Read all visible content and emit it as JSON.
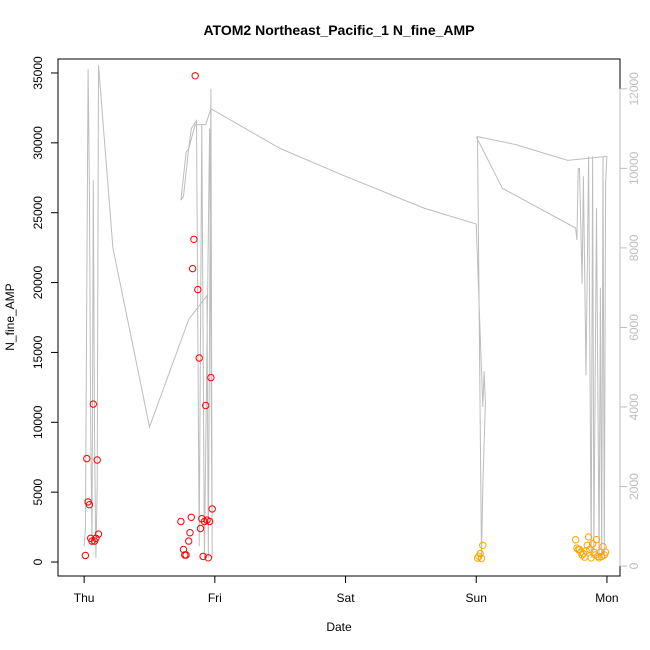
{
  "chart_data": {
    "type": "scatter",
    "title": "ATOM2 Northeast_Pacific_1 N_fine_AMP",
    "xlabel": "Date",
    "ylabel": "N_fine_AMP",
    "x_unit": "days since Thu 00:00",
    "x_ticks": [
      {
        "value": 0,
        "label": "Thu"
      },
      {
        "value": 1,
        "label": "Fri"
      },
      {
        "value": 2,
        "label": "Sat"
      },
      {
        "value": 3,
        "label": "Sun"
      },
      {
        "value": 4,
        "label": "Mon"
      }
    ],
    "xlim": [
      -0.2,
      4.1
    ],
    "ylim": [
      -1000,
      36000
    ],
    "y_ticks": [
      0,
      5000,
      10000,
      15000,
      20000,
      25000,
      30000,
      35000
    ],
    "y2lim": [
      -250,
      12750
    ],
    "y2_ticks": [
      0,
      2000,
      4000,
      6000,
      8000,
      10000,
      12000
    ],
    "y2_color": "#bdbdbd",
    "grid": false,
    "legend": "none",
    "series": [
      {
        "kind": "points",
        "color": "#ff0000",
        "points": [
          [
            0.01,
            470
          ],
          [
            0.02,
            7400
          ],
          [
            0.03,
            4300
          ],
          [
            0.04,
            4100
          ],
          [
            0.05,
            1700
          ],
          [
            0.06,
            1500
          ],
          [
            0.07,
            11300
          ],
          [
            0.08,
            1500
          ],
          [
            0.09,
            1700
          ],
          [
            0.1,
            7300
          ],
          [
            0.11,
            2000
          ],
          [
            0.74,
            2900
          ],
          [
            0.76,
            900
          ],
          [
            0.77,
            500
          ],
          [
            0.78,
            500
          ],
          [
            0.8,
            1500
          ],
          [
            0.81,
            2100
          ],
          [
            0.82,
            3200
          ],
          [
            0.83,
            21000
          ],
          [
            0.84,
            23100
          ],
          [
            0.85,
            34800
          ],
          [
            0.87,
            19500
          ],
          [
            0.88,
            14600
          ],
          [
            0.89,
            2400
          ],
          [
            0.9,
            3100
          ],
          [
            0.91,
            400
          ],
          [
            0.92,
            2900
          ],
          [
            0.93,
            11200
          ],
          [
            0.94,
            3000
          ],
          [
            0.95,
            300
          ],
          [
            0.96,
            2900
          ],
          [
            0.97,
            13200
          ],
          [
            0.98,
            3800
          ]
        ]
      },
      {
        "kind": "points",
        "color": "#ffa500",
        "points": [
          [
            3.01,
            280
          ],
          [
            3.02,
            420
          ],
          [
            3.03,
            600
          ],
          [
            3.04,
            250
          ],
          [
            3.05,
            1200
          ],
          [
            3.76,
            1600
          ],
          [
            3.77,
            1000
          ],
          [
            3.78,
            900
          ],
          [
            3.79,
            900
          ],
          [
            3.8,
            700
          ],
          [
            3.81,
            500
          ],
          [
            3.82,
            600
          ],
          [
            3.83,
            350
          ],
          [
            3.84,
            800
          ],
          [
            3.85,
            1200
          ],
          [
            3.86,
            1800
          ],
          [
            3.87,
            900
          ],
          [
            3.88,
            300
          ],
          [
            3.89,
            1300
          ],
          [
            3.9,
            700
          ],
          [
            3.91,
            500
          ],
          [
            3.92,
            1600
          ],
          [
            3.93,
            400
          ],
          [
            3.94,
            300
          ],
          [
            3.95,
            700
          ],
          [
            3.96,
            400
          ],
          [
            3.97,
            1100
          ],
          [
            3.98,
            500
          ],
          [
            3.99,
            700
          ]
        ]
      },
      {
        "kind": "line",
        "axis": "right",
        "color": "#bdbdbd",
        "points": [
          [
            0.0,
            500
          ],
          [
            0.01,
            900
          ],
          [
            0.02,
            7000
          ],
          [
            0.03,
            12500
          ],
          [
            0.04,
            9500
          ],
          [
            0.05,
            3500
          ],
          [
            0.06,
            500
          ],
          [
            0.07,
            9700
          ],
          [
            0.08,
            3000
          ],
          [
            0.09,
            200
          ],
          [
            0.1,
            2000
          ],
          [
            0.11,
            12600
          ],
          [
            0.22,
            8000
          ],
          [
            0.5,
            3500
          ],
          [
            0.8,
            6200
          ],
          [
            0.94,
            6800
          ],
          [
            0.95,
            200
          ],
          [
            0.97,
            12000
          ],
          [
            0.98,
            200
          ],
          [
            0.96,
            11000
          ],
          [
            0.92,
            200
          ],
          [
            0.9,
            11100
          ],
          [
            0.88,
            500
          ],
          [
            0.86,
            11200
          ],
          [
            0.82,
            11000
          ],
          [
            0.8,
            10500
          ],
          [
            0.78,
            10400
          ],
          [
            0.76,
            9800
          ],
          [
            0.75,
            9500
          ],
          [
            0.74,
            9200
          ],
          [
            0.76,
            9300
          ],
          [
            0.8,
            10500
          ],
          [
            0.85,
            11100
          ],
          [
            0.88,
            11100
          ],
          [
            0.9,
            11100
          ],
          [
            0.93,
            11100
          ],
          [
            0.97,
            11500
          ],
          [
            1.5,
            10500
          ],
          [
            2.0,
            9800
          ],
          [
            2.6,
            9000
          ],
          [
            3.0,
            8600
          ],
          [
            3.05,
            4000
          ],
          [
            3.06,
            4900
          ],
          [
            3.07,
            4100
          ],
          [
            3.05,
            2000
          ],
          [
            3.04,
            200
          ],
          [
            3.01,
            10800
          ],
          [
            3.3,
            10600
          ],
          [
            3.7,
            10200
          ],
          [
            4.0,
            10300
          ],
          [
            3.99,
            9600
          ],
          [
            3.98,
            200
          ],
          [
            3.97,
            10300
          ],
          [
            3.96,
            200
          ],
          [
            3.95,
            7000
          ],
          [
            3.94,
            200
          ],
          [
            3.92,
            9000
          ],
          [
            3.9,
            400
          ],
          [
            3.89,
            10300
          ],
          [
            3.88,
            200
          ],
          [
            3.86,
            10300
          ],
          [
            3.84,
            4800
          ],
          [
            3.82,
            9800
          ],
          [
            3.81,
            7100
          ],
          [
            3.79,
            10000
          ],
          [
            3.78,
            10000
          ],
          [
            3.77,
            8200
          ],
          [
            3.76,
            8500
          ],
          [
            3.2,
            9500
          ],
          [
            3.0,
            10800
          ]
        ]
      }
    ]
  }
}
